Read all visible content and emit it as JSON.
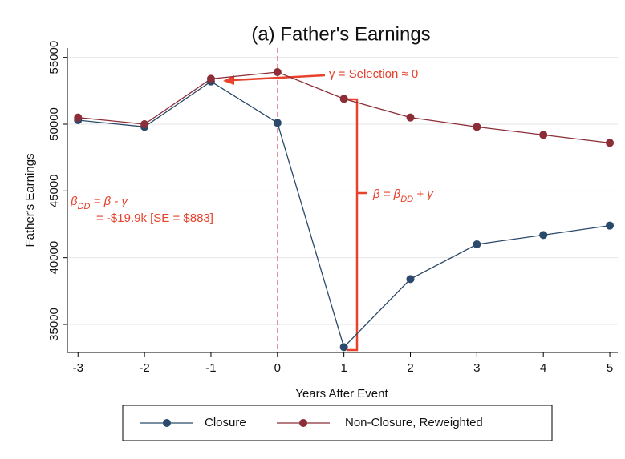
{
  "chart_data": {
    "type": "line",
    "title": "(a) Father's Earnings",
    "x_label": "Years After Event",
    "y_label": "Father's Earnings",
    "x": [
      -3,
      -2,
      -1,
      0,
      1,
      2,
      3,
      4,
      5
    ],
    "series": [
      {
        "name": "Closure",
        "color": "#2b4a6b",
        "values": [
          50300,
          49800,
          53200,
          50100,
          33300,
          38400,
          41000,
          41700,
          42400
        ]
      },
      {
        "name": "Non-Closure, Reweighted",
        "color": "#8c2d37",
        "values": [
          50500,
          50000,
          53400,
          53900,
          51900,
          50500,
          49800,
          49200,
          48600
        ]
      }
    ],
    "xlim": [
      -3.16,
      5.12
    ],
    "xticks": [
      -3,
      -2,
      -1,
      0,
      1,
      2,
      3,
      4,
      5
    ],
    "ylim": [
      32900,
      55700
    ],
    "yticks": [
      35000,
      40000,
      45000,
      50000,
      55000
    ],
    "grid": true,
    "vline": 0,
    "vline_color": "#e07a86",
    "legend": "bottom",
    "annotations": {
      "selection": "γ = Selection ≈ 0",
      "beta": [
        "β = β",
        "DD",
        " + γ"
      ],
      "beta_dd": [
        "β",
        "DD",
        " = β - γ"
      ],
      "estimate": "= -$19.9k [SE = $883]"
    }
  }
}
